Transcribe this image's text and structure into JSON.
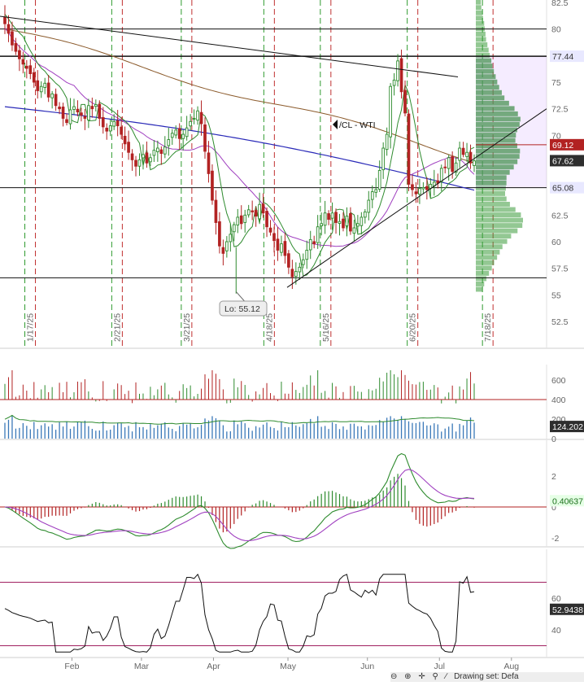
{
  "price_pane": {
    "symbol_label": "/CL - WTI",
    "low_callout": "Lo: 55.12",
    "y_ticks": [
      "82.5",
      "80",
      "77.5",
      "75",
      "72.5",
      "70",
      "67.5",
      "65",
      "62.5",
      "60",
      "57.5",
      "55",
      "52.5"
    ],
    "date_markers": [
      "1/17/25",
      "2/21/25",
      "3/21/25",
      "4/18/25",
      "5/16/25",
      "6/20/25",
      "7/18/25"
    ],
    "price_tags": [
      {
        "value": "77.44",
        "bg": "#e8e8ff",
        "fg": "#333333"
      },
      {
        "value": "69.12",
        "bg": "#b22222",
        "fg": "#ffffff"
      },
      {
        "value": "67.62",
        "bg": "#2e2e2e",
        "fg": "#ffffff"
      },
      {
        "value": "65.08",
        "bg": "#e8e8ff",
        "fg": "#333333"
      }
    ]
  },
  "volume_pane": {
    "y_ticks": [
      "600",
      "400",
      "200",
      "0"
    ],
    "last_value": "124.202"
  },
  "macd_pane": {
    "y_ticks": [
      "2",
      "0",
      "-2"
    ],
    "last_value": "0.40637"
  },
  "rsi_pane": {
    "y_ticks": [
      "60",
      "40"
    ],
    "last_value": "52.9438"
  },
  "x_axis": {
    "month_labels": [
      "Feb",
      "Mar",
      "Apr",
      "May",
      "Jun",
      "Jul",
      "Aug"
    ]
  },
  "toolbar": {
    "drawing_set_label": "Drawing set: Defa"
  },
  "colors": {
    "up": "#2e8b2e",
    "down": "#b22222",
    "sma_fast": "#2a2ab8",
    "sma_slow": "#8b5a2b",
    "trail_stop": "#2e8b2e",
    "ma_purple": "#a040c0",
    "volume_bar": "#3a78b8",
    "profile": "#3a9a3a",
    "rsi_band": "#a02060",
    "trend_line": "#111111"
  },
  "chart_data": [
    {
      "type": "candlestick",
      "title": "/CL - WTI",
      "ylim": [
        51.5,
        83.5
      ],
      "low_annotation": {
        "value": 55.12,
        "label": "Lo: 55.12"
      },
      "horizontal_levels": [
        80,
        77.44,
        65.08,
        56.6
      ],
      "current_price": 67.62,
      "marked_price": 69.12,
      "trading_days": [
        "2025-01-07",
        "2025-01-08",
        "2025-01-09",
        "2025-01-10",
        "2025-01-13",
        "2025-01-14",
        "2025-01-15",
        "2025-01-16",
        "2025-01-17",
        "2025-01-21",
        "2025-01-22",
        "2025-01-23",
        "2025-01-24",
        "2025-01-27",
        "2025-01-28",
        "2025-01-29",
        "2025-01-30",
        "2025-01-31",
        "2025-02-03",
        "2025-02-04",
        "2025-02-05",
        "2025-02-06",
        "2025-02-07",
        "2025-02-10",
        "2025-02-11",
        "2025-02-12",
        "2025-02-13",
        "2025-02-14",
        "2025-02-18",
        "2025-02-19",
        "2025-02-20",
        "2025-02-21",
        "2025-02-24",
        "2025-02-25",
        "2025-02-26",
        "2025-02-27",
        "2025-02-28",
        "2025-03-03",
        "2025-03-04",
        "2025-03-05",
        "2025-03-06",
        "2025-03-07",
        "2025-03-10",
        "2025-03-11",
        "2025-03-12",
        "2025-03-13",
        "2025-03-14",
        "2025-03-17",
        "2025-03-18",
        "2025-03-19",
        "2025-03-20",
        "2025-03-21",
        "2025-03-24",
        "2025-03-25",
        "2025-03-26",
        "2025-03-27",
        "2025-03-28",
        "2025-03-31",
        "2025-04-01",
        "2025-04-02",
        "2025-04-03",
        "2025-04-04",
        "2025-04-07",
        "2025-04-08",
        "2025-04-09",
        "2025-04-10",
        "2025-04-11",
        "2025-04-14",
        "2025-04-15",
        "2025-04-16",
        "2025-04-17",
        "2025-04-21",
        "2025-04-22",
        "2025-04-23",
        "2025-04-24",
        "2025-04-25",
        "2025-04-28",
        "2025-04-29",
        "2025-04-30",
        "2025-05-01",
        "2025-05-02",
        "2025-05-05",
        "2025-05-06",
        "2025-05-07",
        "2025-05-08",
        "2025-05-09",
        "2025-05-12",
        "2025-05-13",
        "2025-05-14",
        "2025-05-15",
        "2025-05-16",
        "2025-05-19",
        "2025-05-20",
        "2025-05-21",
        "2025-05-22",
        "2025-05-23",
        "2025-05-27",
        "2025-05-28",
        "2025-05-29",
        "2025-05-30",
        "2025-06-02",
        "2025-06-03",
        "2025-06-04",
        "2025-06-05",
        "2025-06-06",
        "2025-06-09",
        "2025-06-10",
        "2025-06-11",
        "2025-06-12",
        "2025-06-13",
        "2025-06-16",
        "2025-06-17",
        "2025-06-18",
        "2025-06-20",
        "2025-06-23",
        "2025-06-24",
        "2025-06-25",
        "2025-06-26",
        "2025-06-27",
        "2025-06-30",
        "2025-07-01",
        "2025-07-02",
        "2025-07-03",
        "2025-07-07",
        "2025-07-08",
        "2025-07-09",
        "2025-07-10",
        "2025-07-11",
        "2025-07-14",
        "2025-07-15",
        "2025-07-16"
      ],
      "close": [
        80.5,
        79.6,
        78.5,
        77.9,
        77.2,
        76.7,
        76.3,
        75.8,
        75.0,
        74.2,
        74.6,
        74.9,
        73.6,
        73.9,
        72.8,
        72.5,
        71.6,
        71.2,
        72.4,
        72.7,
        72.2,
        71.9,
        71.6,
        72.8,
        72.5,
        72.9,
        71.6,
        70.8,
        70.4,
        70.9,
        71.3,
        70.9,
        70.1,
        69.2,
        68.4,
        67.7,
        67.1,
        67.7,
        68.2,
        67.4,
        67.9,
        68.6,
        68.8,
        68.3,
        68.9,
        69.6,
        70.2,
        70.5,
        69.7,
        70.1,
        70.7,
        71.3,
        71.6,
        72.3,
        71.1,
        68.5,
        66.4,
        63.9,
        61.8,
        59.6,
        58.9,
        60.0,
        60.7,
        61.6,
        62.3,
        61.7,
        62.5,
        63.0,
        62.8,
        62.4,
        63.5,
        62.7,
        61.4,
        60.9,
        60.1,
        59.2,
        59.8,
        58.7,
        57.6,
        56.7,
        57.2,
        57.6,
        58.3,
        59.2,
        60.2,
        59.8,
        61.4,
        61.7,
        62.7,
        62.1,
        62.7,
        61.8,
        61.9,
        61.3,
        62.4,
        61.0,
        61.3,
        61.7,
        62.3,
        62.8,
        63.9,
        64.7,
        64.9,
        66.7,
        68.8,
        70.1,
        74.6,
        75.2,
        77.0,
        74.1,
        72.1,
        65.4,
        64.9,
        64.5,
        65.0,
        65.1,
        64.9,
        65.4,
        65.6,
        65.5,
        66.9,
        67.0,
        67.9,
        66.6,
        67.4,
        68.8,
        68.2,
        68.4,
        67.4,
        67.6
      ],
      "volume_ylim": [
        0,
        720
      ],
      "volume_scale": "thousands",
      "volume_average": 124.202,
      "macd_ylim": [
        -2.6,
        2.6
      ],
      "macd_last": 0.40637,
      "rsi_ylim": [
        26,
        82
      ],
      "rsi_bands": [
        70,
        30
      ],
      "rsi_last": 52.9438
    }
  ]
}
